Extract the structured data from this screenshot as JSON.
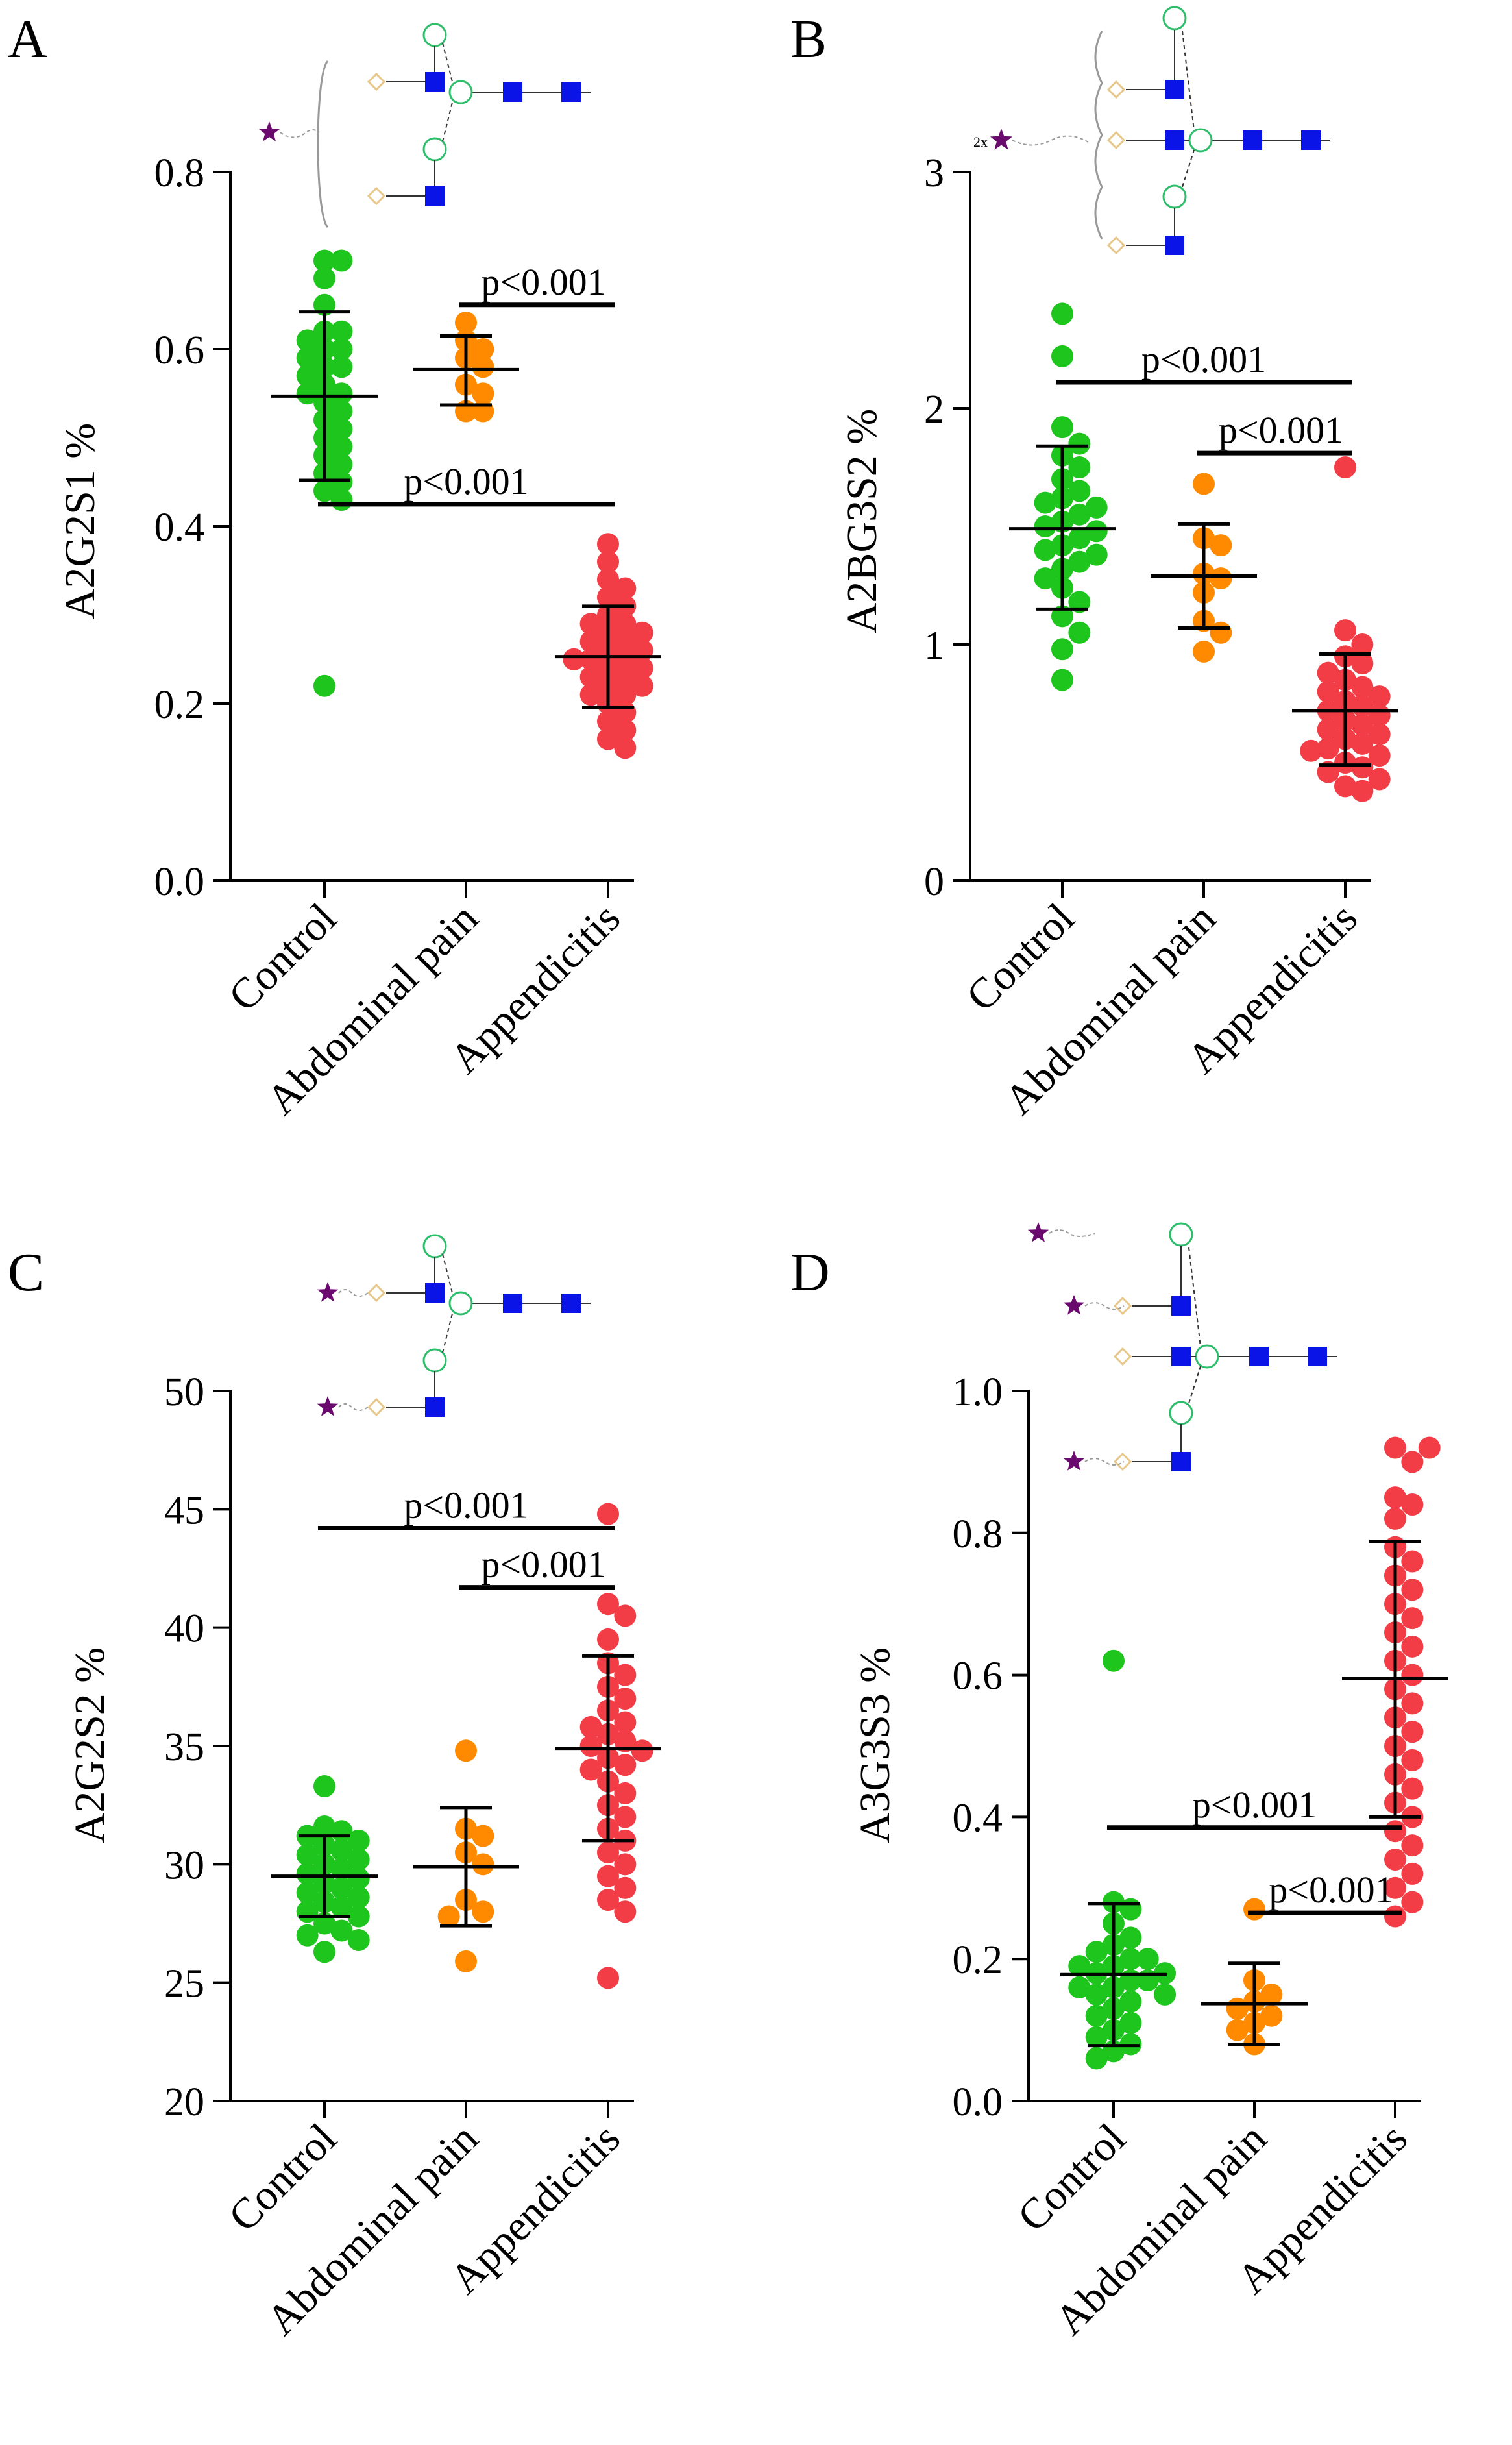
{
  "colors": {
    "control": "#1DC51D",
    "abdominal_pain": "#FF8A00",
    "appendicitis": "#F23C46",
    "axis": "#000000",
    "glycan_square": "#0A14E6",
    "glycan_circle": "#2EBD6A",
    "glycan_diamond": "#E8C88A",
    "glycan_star": "#6A0A6E"
  },
  "chart_data": [
    {
      "panel": "A",
      "type": "scatter",
      "ylabel": "A2G2S1 %",
      "ylim": [
        0,
        0.8
      ],
      "yticks": [
        "0.0",
        "0.2",
        "0.4",
        "0.6",
        "0.8"
      ],
      "categories": [
        "Control",
        "Abdominal pain",
        "Appendicitis"
      ],
      "glycan": {
        "prefix": "",
        "antennae": 2,
        "sialylated": 1
      },
      "series": [
        {
          "name": "Control",
          "mean": 0.547,
          "sd_low": 0.452,
          "sd_high": 0.642,
          "values": [
            0.7,
            0.7,
            0.68,
            0.65,
            0.62,
            0.62,
            0.61,
            0.6,
            0.6,
            0.59,
            0.58,
            0.58,
            0.57,
            0.56,
            0.55,
            0.55,
            0.54,
            0.53,
            0.52,
            0.51,
            0.5,
            0.49,
            0.48,
            0.47,
            0.46,
            0.45,
            0.44,
            0.43,
            0.22
          ]
        },
        {
          "name": "Abdominal pain",
          "mean": 0.577,
          "sd_low": 0.537,
          "sd_high": 0.615,
          "values": [
            0.63,
            0.61,
            0.6,
            0.59,
            0.58,
            0.56,
            0.55,
            0.53,
            0.53
          ]
        },
        {
          "name": "Appendicitis",
          "mean": 0.253,
          "sd_low": 0.196,
          "sd_high": 0.31,
          "values": [
            0.38,
            0.36,
            0.34,
            0.33,
            0.32,
            0.31,
            0.3,
            0.29,
            0.29,
            0.28,
            0.28,
            0.27,
            0.27,
            0.26,
            0.26,
            0.25,
            0.25,
            0.25,
            0.24,
            0.24,
            0.23,
            0.23,
            0.22,
            0.22,
            0.21,
            0.21,
            0.2,
            0.19,
            0.18,
            0.17,
            0.16,
            0.15
          ]
        }
      ],
      "brackets": [
        {
          "from": 1,
          "to": 2,
          "y": 0.65,
          "label": "p<0.001"
        },
        {
          "from": 0,
          "to": 2,
          "y": 0.425,
          "label": "p<0.001"
        }
      ]
    },
    {
      "panel": "B",
      "type": "scatter",
      "ylabel": "A2BG3S2 %",
      "ylim": [
        0,
        3
      ],
      "yticks": [
        "0",
        "1",
        "2",
        "3"
      ],
      "categories": [
        "Control",
        "Abdominal pain",
        "Appendicitis"
      ],
      "glycan": {
        "prefix": "2x",
        "antennae": 3,
        "sialylated": 1
      },
      "series": [
        {
          "name": "Control",
          "mean": 1.49,
          "sd_low": 1.15,
          "sd_high": 1.84,
          "values": [
            2.4,
            2.22,
            1.92,
            1.85,
            1.8,
            1.75,
            1.7,
            1.65,
            1.62,
            1.6,
            1.58,
            1.55,
            1.52,
            1.5,
            1.48,
            1.45,
            1.42,
            1.4,
            1.38,
            1.35,
            1.32,
            1.28,
            1.24,
            1.18,
            1.12,
            1.05,
            0.98,
            0.85
          ]
        },
        {
          "name": "Abdominal pain",
          "mean": 1.29,
          "sd_low": 1.07,
          "sd_high": 1.51,
          "values": [
            1.68,
            1.45,
            1.42,
            1.3,
            1.28,
            1.22,
            1.1,
            1.05,
            0.97
          ]
        },
        {
          "name": "Appendicitis",
          "mean": 0.72,
          "sd_low": 0.49,
          "sd_high": 0.96,
          "values": [
            1.75,
            1.06,
            1.0,
            0.95,
            0.92,
            0.88,
            0.85,
            0.82,
            0.8,
            0.78,
            0.76,
            0.74,
            0.72,
            0.7,
            0.68,
            0.66,
            0.64,
            0.62,
            0.6,
            0.58,
            0.56,
            0.55,
            0.53,
            0.5,
            0.48,
            0.46,
            0.43,
            0.4,
            0.38
          ]
        }
      ],
      "brackets": [
        {
          "from": 0,
          "to": 2,
          "y": 2.11,
          "label": "p<0.001"
        },
        {
          "from": 1,
          "to": 2,
          "y": 1.81,
          "label": "p<0.001"
        }
      ]
    },
    {
      "panel": "C",
      "type": "scatter",
      "ylabel": "A2G2S2 %",
      "ylim": [
        20,
        50
      ],
      "yticks": [
        "20",
        "25",
        "30",
        "35",
        "40",
        "45",
        "50"
      ],
      "categories": [
        "Control",
        "Abdominal pain",
        "Appendicitis"
      ],
      "glycan": {
        "prefix": "",
        "antennae": 2,
        "sialylated": 2
      },
      "series": [
        {
          "name": "Control",
          "mean": 29.5,
          "sd_low": 27.8,
          "sd_high": 31.2,
          "values": [
            33.3,
            31.6,
            31.4,
            31.2,
            31.0,
            30.8,
            30.6,
            30.4,
            30.2,
            30.0,
            29.8,
            29.6,
            29.4,
            29.2,
            29.0,
            28.8,
            28.6,
            28.4,
            28.2,
            28.0,
            27.8,
            27.5,
            27.2,
            27.0,
            26.8,
            26.3
          ]
        },
        {
          "name": "Abdominal pain",
          "mean": 29.9,
          "sd_low": 27.4,
          "sd_high": 32.4,
          "values": [
            34.8,
            31.5,
            31.2,
            30.5,
            30.0,
            28.5,
            28.0,
            27.8,
            25.9
          ]
        },
        {
          "name": "Appendicitis",
          "mean": 34.9,
          "sd_low": 31.0,
          "sd_high": 38.8,
          "values": [
            44.8,
            41.0,
            40.5,
            39.5,
            38.5,
            38.0,
            37.5,
            37.0,
            36.5,
            36.0,
            35.8,
            35.5,
            35.2,
            35.0,
            34.8,
            34.5,
            34.2,
            34.0,
            33.5,
            33.0,
            32.5,
            32.0,
            31.5,
            31.0,
            30.5,
            30.0,
            29.5,
            29.0,
            28.5,
            28.0,
            25.2
          ]
        }
      ],
      "brackets": [
        {
          "from": 0,
          "to": 2,
          "y": 44.2,
          "label": "p<0.001"
        },
        {
          "from": 1,
          "to": 2,
          "y": 41.7,
          "label": "p<0.001"
        }
      ]
    },
    {
      "panel": "D",
      "type": "scatter",
      "ylabel": "A3G3S3 %",
      "ylim": [
        0,
        1
      ],
      "yticks": [
        "0.0",
        "0.2",
        "0.4",
        "0.6",
        "0.8",
        "1.0"
      ],
      "categories": [
        "Control",
        "Abdominal pain",
        "Appendicitis"
      ],
      "glycan": {
        "prefix": "",
        "antennae": 3,
        "sialylated": 3
      },
      "series": [
        {
          "name": "Control",
          "mean": 0.178,
          "sd_low": 0.078,
          "sd_high": 0.278,
          "values": [
            0.62,
            0.28,
            0.27,
            0.25,
            0.23,
            0.22,
            0.21,
            0.2,
            0.2,
            0.19,
            0.19,
            0.18,
            0.18,
            0.17,
            0.17,
            0.16,
            0.16,
            0.15,
            0.15,
            0.14,
            0.13,
            0.12,
            0.11,
            0.1,
            0.09,
            0.08,
            0.07,
            0.06
          ]
        },
        {
          "name": "Abdominal pain",
          "mean": 0.137,
          "sd_low": 0.08,
          "sd_high": 0.194,
          "values": [
            0.27,
            0.17,
            0.15,
            0.14,
            0.13,
            0.12,
            0.11,
            0.1,
            0.08
          ]
        },
        {
          "name": "Appendicitis",
          "mean": 0.595,
          "sd_low": 0.4,
          "sd_high": 0.788,
          "values": [
            0.92,
            0.92,
            0.9,
            0.85,
            0.84,
            0.82,
            0.78,
            0.76,
            0.74,
            0.72,
            0.7,
            0.68,
            0.66,
            0.64,
            0.62,
            0.6,
            0.58,
            0.56,
            0.54,
            0.52,
            0.5,
            0.48,
            0.46,
            0.44,
            0.42,
            0.4,
            0.38,
            0.36,
            0.34,
            0.32,
            0.3,
            0.28,
            0.26
          ]
        }
      ],
      "brackets": [
        {
          "from": 0,
          "to": 2,
          "y": 0.385,
          "label": "p<0.001"
        },
        {
          "from": 1,
          "to": 2,
          "y": 0.265,
          "label": "p<0.001"
        }
      ]
    }
  ]
}
